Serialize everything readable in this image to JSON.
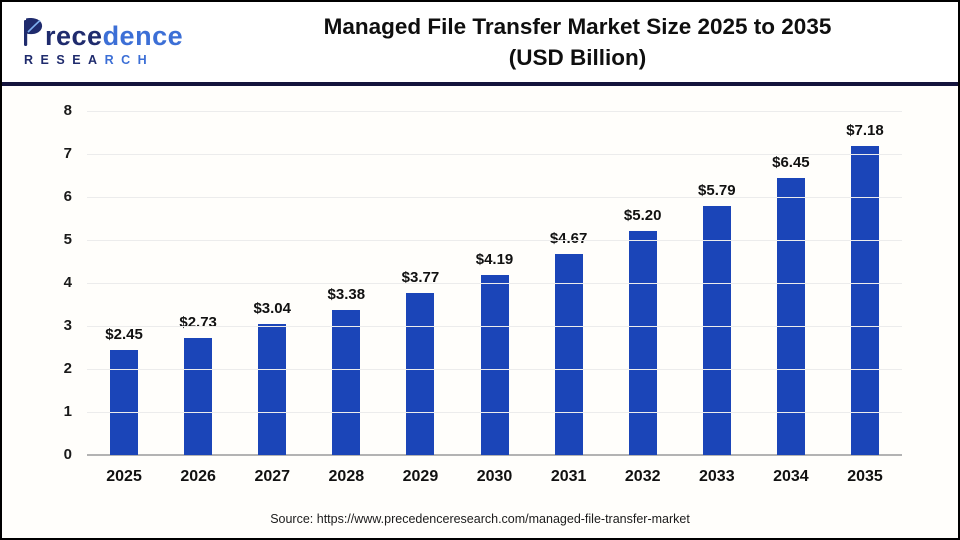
{
  "header": {
    "logo": {
      "brand_name": "Precedence",
      "brand_part_navy": "rece",
      "brand_part_blue": "dence",
      "sub_part_navy": "RESEA",
      "sub_part_blue": "RCH"
    },
    "title_line1": "Managed File Transfer Market Size 2025 to 2035",
    "title_line2": "(USD Billion)"
  },
  "chart_data": {
    "type": "bar",
    "title": "Managed File Transfer Market Size 2025 to 2035 (USD Billion)",
    "unit": "USD Billion",
    "categories": [
      "2025",
      "2026",
      "2027",
      "2028",
      "2029",
      "2030",
      "2031",
      "2032",
      "2033",
      "2034",
      "2035"
    ],
    "values": [
      2.45,
      2.73,
      3.04,
      3.38,
      3.77,
      4.19,
      4.67,
      5.2,
      5.79,
      6.45,
      7.18
    ],
    "value_labels": [
      "$2.45",
      "$2.73",
      "$3.04",
      "$3.38",
      "$3.77",
      "$4.19",
      "$4.67",
      "$5.20",
      "$5.79",
      "$6.45",
      "$7.18"
    ],
    "ylim": [
      0,
      8
    ],
    "yticks": [
      0,
      1,
      2,
      3,
      4,
      5,
      6,
      7,
      8
    ],
    "grid": true,
    "legend_position": "none",
    "bar_color": "#1b45b8"
  },
  "footer": {
    "source_text": "Source: https://www.precedenceresearch.com/managed-file-transfer-market"
  },
  "colors": {
    "bar": "#1b45b8",
    "divider": "#14143c",
    "grid": "#ececec",
    "axis_line": "#b3b3b3",
    "logo_navy": "#1f2b6d",
    "logo_blue": "#3c6fd6",
    "title_text": "#0f0f0f"
  }
}
